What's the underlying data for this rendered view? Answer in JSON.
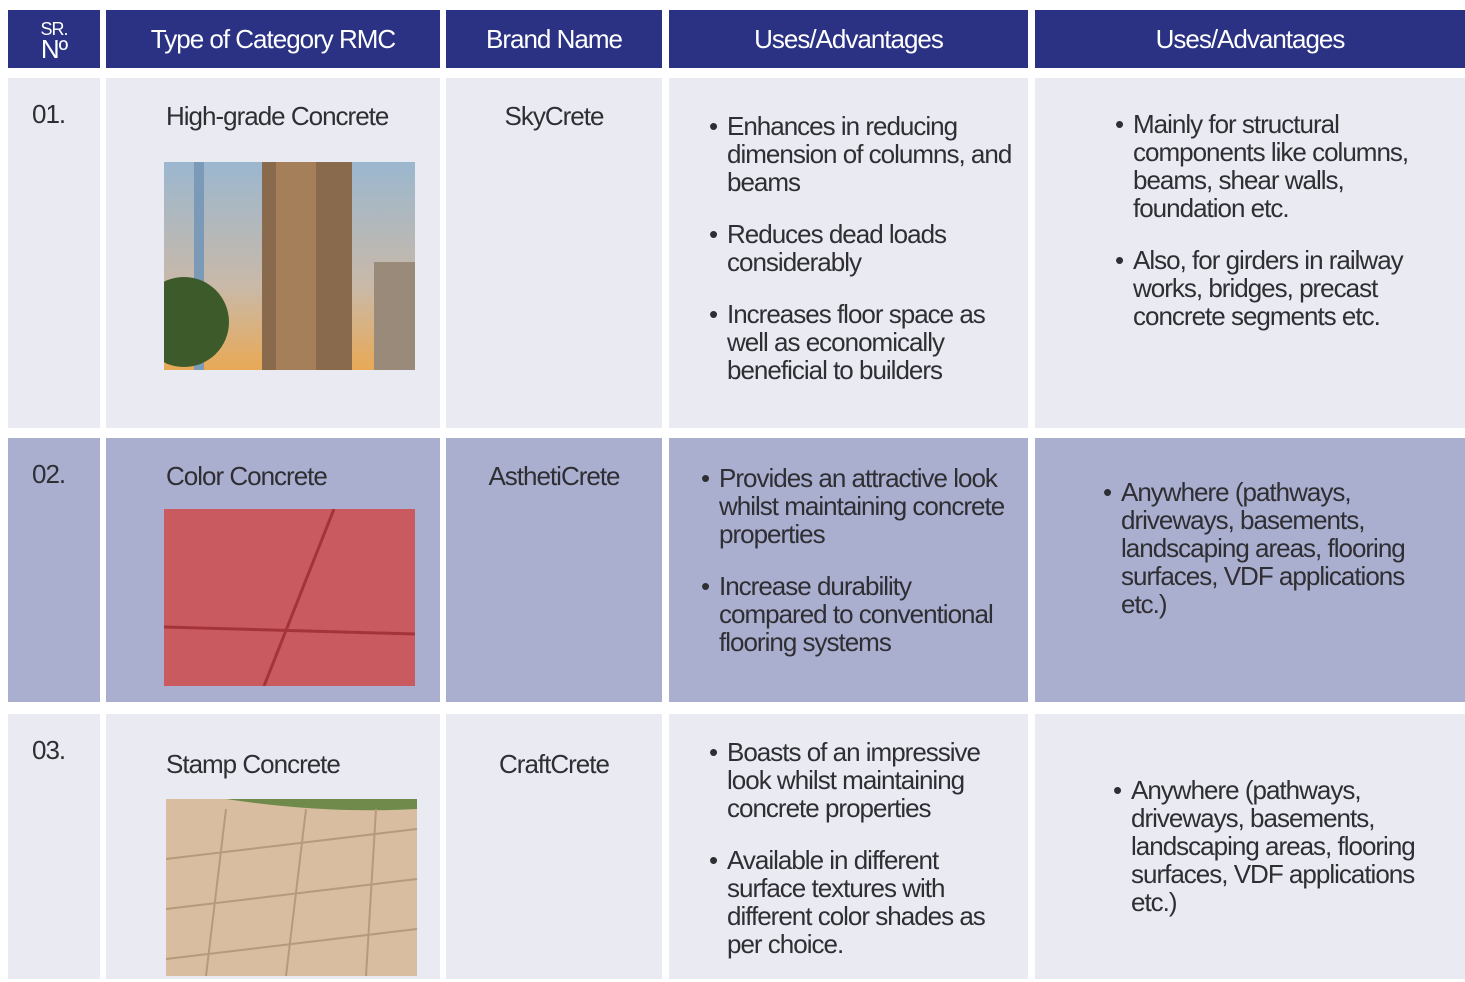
{
  "table": {
    "sr_header": [
      "SR.",
      "Nº"
    ],
    "headers": [
      "Type of Category RMC",
      "Brand Name",
      "Uses/Advantages",
      "Uses/Advantages"
    ],
    "rows": [
      {
        "sr": "01.",
        "type": "High-grade Concrete",
        "brand": "SkyCrete",
        "uses": [
          "Enhances in reducing dimension of columns, and beams",
          "Reduces dead loads considerably",
          "Increases floor space as well as economically beneficial to builders"
        ],
        "advantages": [
          "Mainly for structural components like columns, beams, shear walls, foundation etc.",
          "Also, for girders in railway works, bridges, precast concrete segments etc."
        ]
      },
      {
        "sr": "02.",
        "type": "Color Concrete",
        "brand": "AsthetiCrete",
        "uses": [
          "Provides an attractive look whilst maintaining concrete properties",
          "Increase durability compared to conventional flooring systems"
        ],
        "advantages": [
          "Anywhere (pathways, driveways, basements, landscaping areas, flooring surfaces, VDF applications etc.)"
        ]
      },
      {
        "sr": "03.",
        "type": "Stamp Concrete",
        "brand": "CraftCrete",
        "uses": [
          "Boasts of an impressive look whilst maintaining concrete properties",
          "Available in different surface textures with different color shades as per choice."
        ],
        "advantages": [
          "Anywhere (pathways, driveways, basements, landscaping areas, flooring surfaces, VDF applications etc.)"
        ]
      }
    ]
  }
}
